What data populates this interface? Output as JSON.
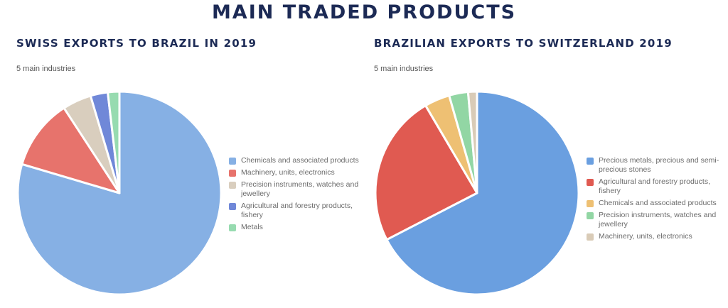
{
  "page_title": "MAIN TRADED PRODUCTS",
  "chart_data": [
    {
      "type": "pie",
      "title": "SWISS EXPORTS TO BRAZIL IN 2019",
      "subtitle": "5 main industries",
      "categories": [
        "Chemicals and associated products",
        "Machinery, units, electronics",
        "Precision instruments, watches and jewellery",
        "Agricultural and forestry products, fishery",
        "Metals"
      ],
      "values": [
        78,
        11,
        4.5,
        2.7,
        1.8
      ],
      "colors": [
        "#86b0e4",
        "#e7736c",
        "#d9cebe",
        "#7088d8",
        "#97dbb0"
      ],
      "legend_position": "right"
    },
    {
      "type": "pie",
      "title": "BRAZILIAN EXPORTS TO SWITZERLAND 2019",
      "subtitle": "5 main industries",
      "categories": [
        "Precious metals, precious and semi-precious stones",
        "Agricultural and forestry products, fishery",
        "Chemicals and associated products",
        "Precision instruments, watches and jewellery",
        "Machinery, units, electronics"
      ],
      "values": [
        67,
        24,
        4,
        3,
        1.4
      ],
      "colors": [
        "#6a9fe0",
        "#e05a51",
        "#eec073",
        "#92d6a4",
        "#d9cbb7"
      ],
      "legend_position": "right"
    }
  ]
}
